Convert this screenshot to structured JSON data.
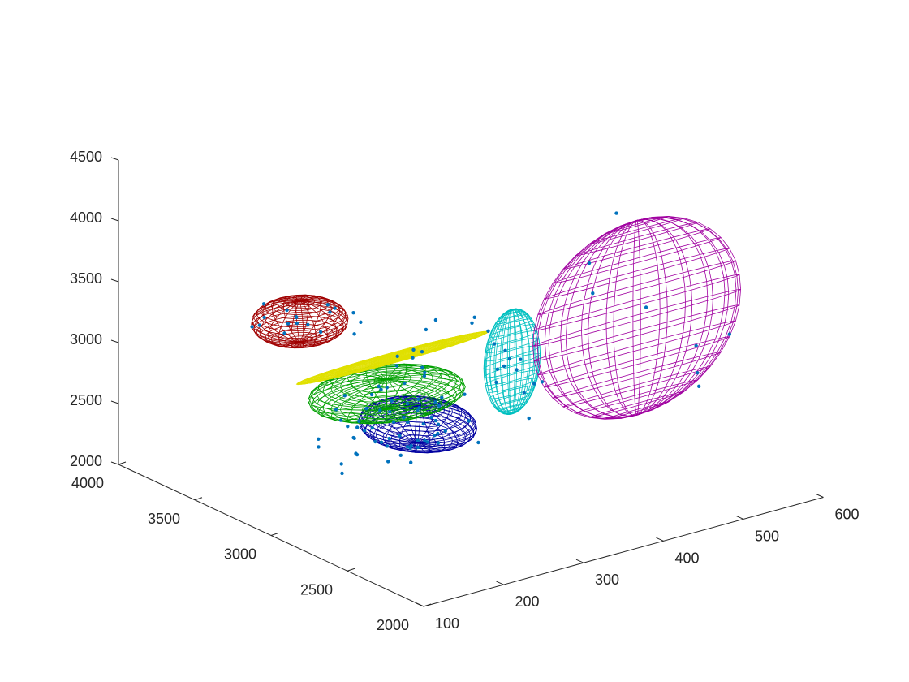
{
  "chart_data": {
    "type": "scatter",
    "projection": "3d",
    "title": "",
    "xlabel": "",
    "ylabel": "",
    "zlabel": "",
    "grid": false,
    "legend": "none",
    "xlim": [
      100,
      600
    ],
    "ylim": [
      2000,
      4000
    ],
    "zlim": [
      2000,
      4500
    ],
    "xticks": [
      "100",
      "200",
      "300",
      "400",
      "500",
      "600"
    ],
    "yticks": [
      "2000",
      "2500",
      "3000",
      "3500",
      "4000"
    ],
    "zticks": [
      "2000",
      "2500",
      "3000",
      "3500",
      "4000",
      "4500"
    ],
    "point_color": "#0072BD",
    "axis_color": "#262626",
    "ellipsoids": [
      {
        "color": "#0000A0",
        "center": [
          398,
          3600,
          2028
        ],
        "radii": [
          55,
          260,
          150
        ]
      },
      {
        "color": "#00A000",
        "center": [
          235,
          2950,
          2950
        ],
        "radii": [
          85,
          260,
          120
        ]
      },
      {
        "color": "#E0E000",
        "center": [
          290,
          3200,
          3000
        ],
        "radii": [
          120,
          20,
          40
        ]
      },
      {
        "color": "#00C0C0",
        "center": [
          306,
          2500,
          3350
        ],
        "radii": [
          35,
          30,
          430
        ]
      },
      {
        "color": "#A00000",
        "center": [
          155,
          3100,
          3600
        ],
        "radii": [
          50,
          180,
          170
        ]
      },
      {
        "color": "#A000A0",
        "center": [
          462,
          2500,
          3430
        ],
        "radii": [
          130,
          25,
          800
        ]
      }
    ],
    "points": [
      [
        431,
        3840,
        2000
      ],
      [
        403,
        3784,
        1931
      ],
      [
        441,
        3668,
        2131
      ],
      [
        298,
        3576,
        1896
      ],
      [
        325,
        3515,
        2179
      ],
      [
        309,
        3549,
        2103
      ],
      [
        374,
        3645,
        2237
      ],
      [
        358,
        3573,
        2218
      ],
      [
        399,
        3474,
        2024
      ],
      [
        368,
        3554,
        1854
      ],
      [
        392,
        3506,
        1949
      ],
      [
        331,
        3528,
        2048
      ],
      [
        415,
        3555,
        1872
      ],
      [
        410,
        3616,
        1863
      ],
      [
        445,
        3665,
        1851
      ],
      [
        325,
        3677,
        2097
      ],
      [
        469,
        3575,
        1766
      ],
      [
        303,
        3598,
        1798
      ],
      [
        421,
        3683,
        1942
      ],
      [
        474,
        3663,
        1883
      ],
      [
        375,
        3525,
        1800
      ],
      [
        382,
        3608,
        2108
      ],
      [
        446,
        3711,
        2030
      ],
      [
        401,
        3606,
        2155
      ],
      [
        391,
        3565,
        2174
      ],
      [
        384,
        3592,
        2076
      ],
      [
        429,
        3644,
        1977
      ],
      [
        316,
        3576,
        1949
      ],
      [
        386,
        3605,
        1862
      ],
      [
        308,
        3526,
        1983
      ],
      [
        390,
        3601,
        1866
      ],
      [
        424,
        3627,
        1875
      ],
      [
        476,
        3702,
        2075
      ],
      [
        399,
        3601,
        2232
      ],
      [
        368,
        3562,
        2010
      ],
      [
        428,
        3641,
        2132
      ],
      [
        429,
        3673,
        1988
      ],
      [
        368,
        3492,
        1949
      ],
      [
        437,
        3670,
        1917
      ],
      [
        367,
        3632,
        1760
      ],
      [
        359,
        3582,
        1992
      ],
      [
        394,
        3578,
        1859
      ],
      [
        361,
        3607,
        1912
      ],
      [
        400,
        3610,
        1884
      ],
      [
        314,
        3581,
        2080
      ],
      [
        349,
        3581,
        1980
      ],
      [
        234,
        2988,
        2794
      ],
      [
        114,
        2762,
        2841
      ],
      [
        171,
        2796,
        2930
      ],
      [
        150,
        2836,
        3041
      ],
      [
        309,
        3090,
        2882
      ],
      [
        319,
        3158,
        3024
      ],
      [
        304,
        3078,
        2967
      ],
      [
        244,
        2995,
        2959
      ],
      [
        218,
        2912,
        3064
      ],
      [
        270,
        3017,
        2936
      ],
      [
        242,
        3023,
        2930
      ],
      [
        272,
        3073,
        3120
      ],
      [
        332,
        3200,
        3158
      ],
      [
        213,
        2932,
        2994
      ],
      [
        191,
        2912,
        2775
      ],
      [
        177,
        2791,
        2844
      ],
      [
        146,
        2783,
        2990
      ],
      [
        297,
        3025,
        2969
      ],
      [
        253,
        2978,
        3132
      ],
      [
        311,
        3172,
        3046
      ],
      [
        201,
        2904,
        2917
      ],
      [
        113,
        2758,
        2909
      ],
      [
        293,
        3083,
        3064
      ],
      [
        176,
        2915,
        3061
      ],
      [
        306,
        3000,
        3400
      ],
      [
        289,
        2514,
        3201
      ],
      [
        318,
        2484,
        3084
      ],
      [
        261,
        2527,
        3732
      ],
      [
        297,
        2505,
        3326
      ],
      [
        281,
        2486,
        3548
      ],
      [
        322,
        2473,
        2872
      ],
      [
        267,
        2452,
        3698
      ],
      [
        302,
        2575,
        3250
      ],
      [
        337,
        2518,
        3102
      ],
      [
        311,
        2542,
        3339
      ],
      [
        342,
        2492,
        3124
      ],
      [
        318,
        2507,
        3342
      ],
      [
        294,
        2482,
        3472
      ],
      [
        314,
        2512,
        3261
      ],
      [
        253,
        2468,
        3827
      ],
      [
        154,
        3042,
        3610
      ],
      [
        93,
        3088,
        3675
      ],
      [
        163,
        3167,
        3587
      ],
      [
        157,
        3195,
        3634
      ],
      [
        122,
        3190,
        3576
      ],
      [
        197,
        3137,
        3641
      ],
      [
        176,
        3073,
        3492
      ],
      [
        200,
        2978,
        3488
      ],
      [
        213,
        3174,
        3562
      ],
      [
        141,
        3127,
        3513
      ],
      [
        146,
        3075,
        3664
      ],
      [
        229,
        3136,
        3518
      ],
      [
        131,
        3210,
        3723
      ],
      [
        99,
        3039,
        3769
      ],
      [
        214,
        3010,
        3541
      ],
      [
        152,
        3103,
        3589
      ],
      [
        128,
        3035,
        3669
      ],
      [
        191,
        3091,
        3617
      ],
      [
        464,
        2449,
        3542
      ],
      [
        396,
        2466,
        4017
      ],
      [
        595,
        2589,
        3004
      ],
      [
        432,
        2476,
        4356
      ],
      [
        537,
        2504,
        3063
      ],
      [
        535,
        2475,
        2751
      ],
      [
        405,
        2490,
        3739
      ],
      [
        548,
        2554,
        2792
      ]
    ]
  }
}
